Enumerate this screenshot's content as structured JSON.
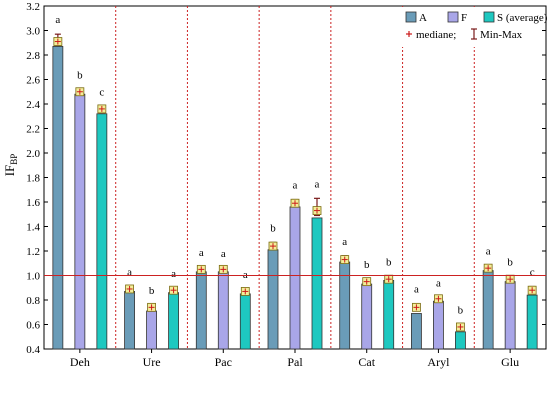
{
  "chart_data": {
    "type": "bar",
    "ylabel": "IF",
    "ylabel_sub": "BP",
    "ylim": [
      0.4,
      3.2
    ],
    "yticks": [
      0.4,
      0.6,
      0.8,
      1.0,
      1.2,
      1.4,
      1.6,
      1.8,
      2.0,
      2.2,
      2.4,
      2.6,
      2.8,
      3.0,
      3.2
    ],
    "ytick_labels": [
      "0.4",
      "0.6",
      "0.8",
      "1.0",
      "1.2",
      "1.4",
      "1.6",
      "1.8",
      "2.0",
      "2.2",
      "2.4",
      "2.6",
      "2.8",
      "3.0",
      "3.2"
    ],
    "reference_line": 1.0,
    "categories": [
      "Deh",
      "Ure",
      "Pac",
      "Pal",
      "Cat",
      "Aryl",
      "Glu"
    ],
    "series": [
      {
        "name": "A",
        "color": "#6a9cb8",
        "values": [
          2.87,
          0.87,
          1.03,
          1.21,
          1.11,
          0.69,
          1.04
        ],
        "average": [
          2.91,
          0.89,
          1.05,
          1.24,
          1.13,
          0.74,
          1.06
        ],
        "min": [
          2.88,
          0.88,
          1.04,
          1.22,
          1.12,
          0.73,
          1.05
        ],
        "max": [
          2.97,
          0.91,
          1.07,
          1.27,
          1.16,
          0.77,
          1.08
        ],
        "letters": [
          "a",
          "a",
          "a",
          "b",
          "a",
          "a",
          "a"
        ]
      },
      {
        "name": "F",
        "color": "#a9a6e8",
        "values": [
          2.48,
          0.71,
          1.03,
          1.56,
          0.93,
          0.79,
          0.95
        ],
        "average": [
          2.5,
          0.74,
          1.05,
          1.59,
          0.95,
          0.81,
          0.97
        ],
        "min": [
          2.49,
          0.72,
          1.04,
          1.57,
          0.93,
          0.8,
          0.95
        ],
        "max": [
          2.52,
          0.76,
          1.06,
          1.62,
          0.97,
          0.82,
          0.99
        ],
        "letters": [
          "b",
          "b",
          "a",
          "a",
          "b",
          "a",
          "b"
        ]
      },
      {
        "name": "S",
        "color": "#1ec8c0",
        "values": [
          2.32,
          0.86,
          0.85,
          1.47,
          0.96,
          0.54,
          0.84
        ],
        "average": [
          2.36,
          0.88,
          0.87,
          1.53,
          0.97,
          0.58,
          0.88
        ],
        "min": [
          2.33,
          0.87,
          0.86,
          1.49,
          0.96,
          0.56,
          0.86
        ],
        "max": [
          2.38,
          0.9,
          0.89,
          1.63,
          0.99,
          0.6,
          0.91
        ],
        "letters": [
          "c",
          "a",
          "a",
          "a",
          "b",
          "b",
          "c"
        ]
      }
    ],
    "legend": {
      "placement": "top-right",
      "entries": [
        "A",
        "F",
        "S (average)"
      ],
      "line2": [
        "mediane;",
        "Min-Max"
      ]
    },
    "colors": {
      "median_marker": "#cc1a1a",
      "average_marker_fill": "#f3ee9a",
      "average_marker_stroke": "#7a6a10",
      "whisker": "#7a1a1a",
      "separator": "#cc2222",
      "reference_line": "#cc2222",
      "axis": "#000000"
    }
  }
}
